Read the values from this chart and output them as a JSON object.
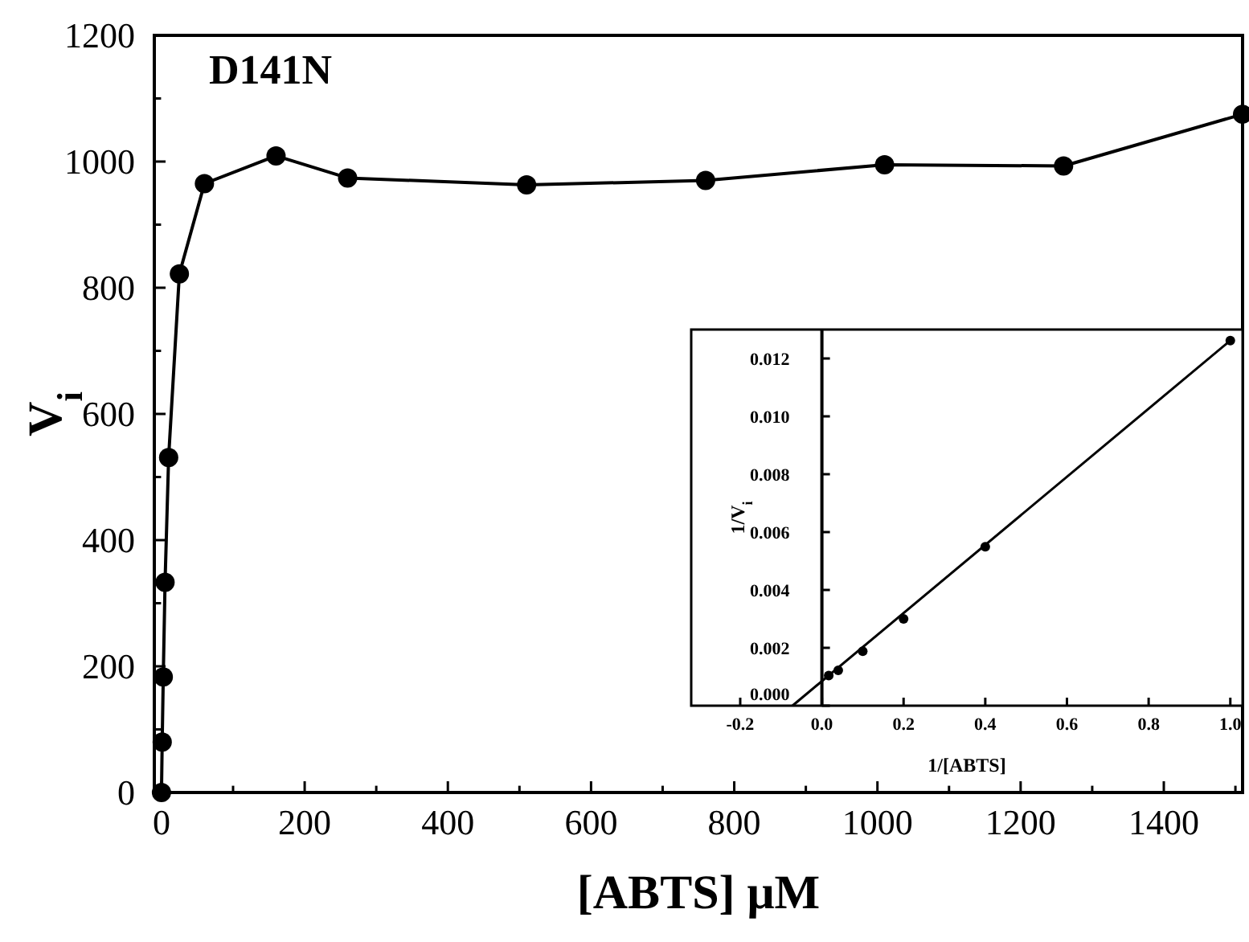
{
  "chart_data": [
    {
      "type": "line",
      "xlabel": "[ABTS] μM",
      "ylabel": "V$_{i}$",
      "annotations": [
        "D141N"
      ],
      "x": [
        0,
        1,
        2.5,
        5,
        10,
        25,
        60,
        160,
        260,
        510,
        760,
        1010,
        1260,
        1510
      ],
      "series": [
        {
          "color": "#000000",
          "values": [
            0,
            80,
            183,
            333,
            531,
            822,
            965,
            1009,
            974,
            963,
            970,
            995,
            993,
            1075
          ]
        }
      ],
      "xlim": [
        -10,
        1510
      ],
      "ylim": [
        0,
        1200
      ],
      "xticks": [
        0,
        {
          "value": 100,
          "label": null
        },
        200,
        {
          "value": 300,
          "label": null
        },
        400,
        {
          "value": 500,
          "label": null
        },
        600,
        {
          "value": 700,
          "label": null
        },
        800,
        {
          "value": 900,
          "label": null
        },
        1000,
        {
          "value": 1100,
          "label": null
        },
        1200,
        {
          "value": 1300,
          "label": null
        },
        1400,
        {
          "value": 1500,
          "label": null
        }
      ],
      "yticks": [
        0,
        {
          "value": 100,
          "label": null
        },
        200,
        {
          "value": 300,
          "label": null
        },
        400,
        {
          "value": 500,
          "label": null
        },
        600,
        {
          "value": 700,
          "label": null
        },
        800,
        {
          "value": 900,
          "label": null
        },
        1000,
        {
          "value": 1100,
          "label": null
        },
        1200
      ],
      "marker": "circle",
      "grid": false
    },
    {
      "type": "scatter",
      "xlabel": "1/[ABTS]",
      "ylabel": "1/V$_{i}$",
      "series": [
        {
          "color": "#000000",
          "x": [
            0.0167,
            0.04,
            0.1,
            0.2,
            0.4,
            1.0
          ],
          "values": [
            0.00104,
            0.00122,
            0.00188,
            0.003,
            0.00549,
            0.01262
          ]
        },
        {
          "type": "line",
          "color": "#000000",
          "x": [
            -0.072,
            1.0
          ],
          "values": [
            0,
            0.01262
          ]
        }
      ],
      "xlim": [
        -0.32,
        1.03
      ],
      "ylim": [
        0,
        0.013
      ],
      "xticks": [
        {
          "value": -0.2,
          "label": "-0.2"
        },
        {
          "value": 0,
          "label": "0.0"
        },
        {
          "value": 0.2,
          "label": "0.2"
        },
        {
          "value": 0.4,
          "label": "0.4"
        },
        {
          "value": 0.6,
          "label": "0.6"
        },
        {
          "value": 0.8,
          "label": "0.8"
        },
        {
          "value": 1,
          "label": "1.0"
        }
      ],
      "yticks": [
        {
          "value": 0,
          "label": "0.000"
        },
        {
          "value": 0.002,
          "label": "0.002"
        },
        {
          "value": 0.004,
          "label": "0.004"
        },
        {
          "value": 0.006,
          "label": "0.006"
        },
        {
          "value": 0.008,
          "label": "0.008"
        },
        {
          "value": 0.01,
          "label": "0.010"
        },
        {
          "value": 0.012,
          "label": "0.012"
        }
      ],
      "grid": false
    }
  ]
}
